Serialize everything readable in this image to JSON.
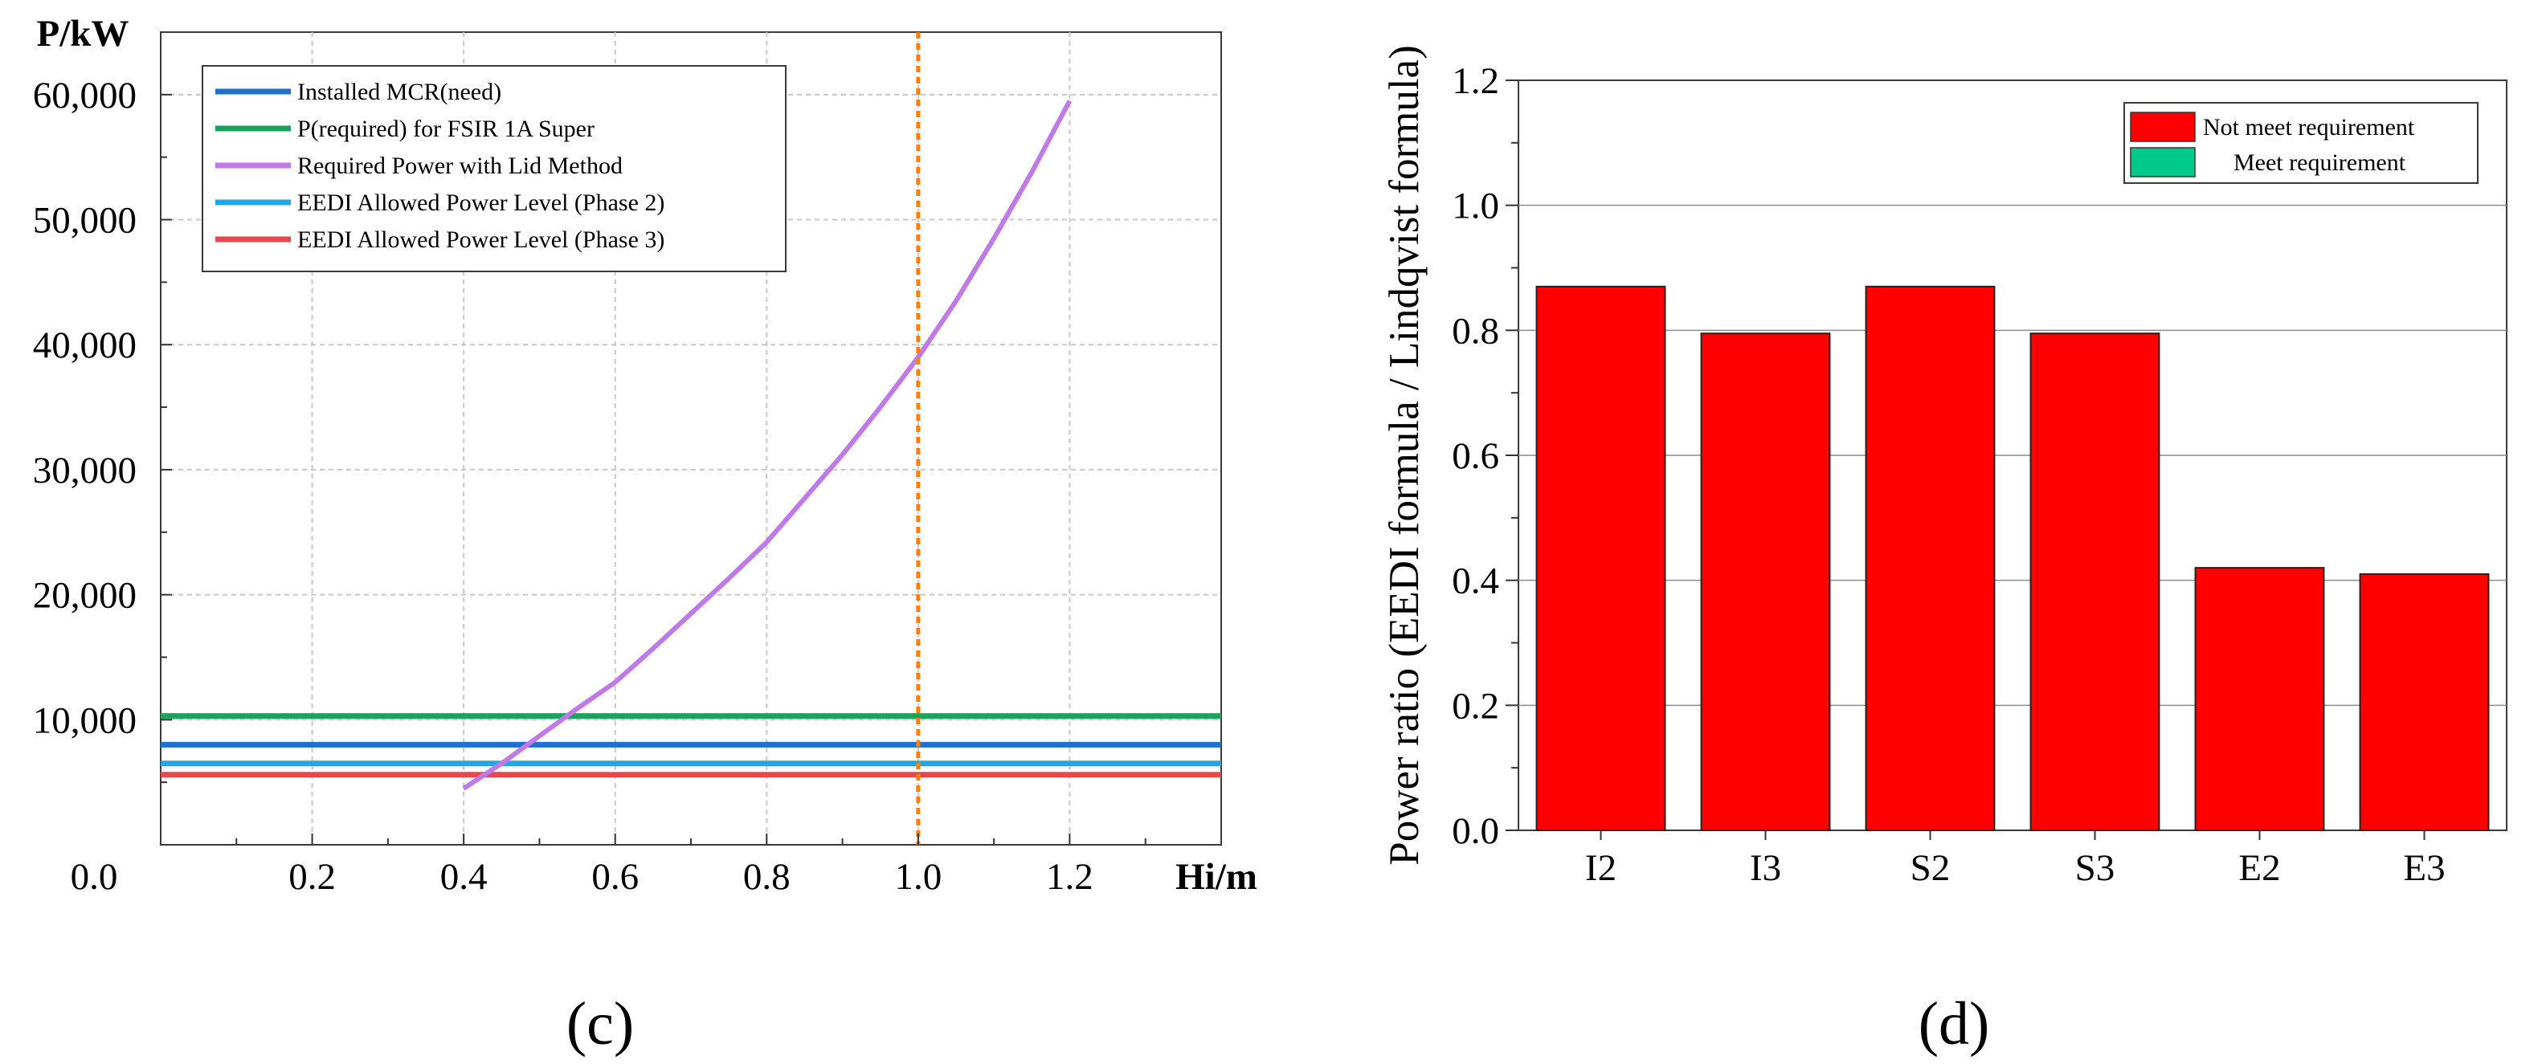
{
  "chart_data": [
    {
      "type": "line",
      "panel_label": "(c)",
      "xlabel": "Hi/m",
      "ylabel": "P/kW",
      "xlim": [
        0,
        1.4
      ],
      "ylim": [
        0,
        65000
      ],
      "x_ticks": [
        0.2,
        0.4,
        0.6,
        0.8,
        1.0,
        1.2
      ],
      "x_tick_labels": [
        "0.2",
        "0.4",
        "0.6",
        "0.8",
        "1.0",
        "1.2"
      ],
      "origin_label": "0.0",
      "y_ticks": [
        10000,
        20000,
        30000,
        40000,
        50000,
        60000
      ],
      "y_tick_labels": [
        "10,000",
        "20,000",
        "30,000",
        "40,000",
        "50,000",
        "60,000"
      ],
      "grid": true,
      "legend_position": "top-left",
      "reference_line": {
        "x": 1.0,
        "style": "dotted",
        "color": "#ff7f0e"
      },
      "series": [
        {
          "name": "Installed MCR(need)",
          "color": "#1f6fd0",
          "x": [
            0,
            1.4
          ],
          "y": [
            8000,
            8000
          ]
        },
        {
          "name": "P(required) for FSIR 1A Super",
          "color": "#1aa35c",
          "x": [
            0,
            1.4
          ],
          "y": [
            10300,
            10300
          ]
        },
        {
          "name": "Required Power with Lid Method",
          "color": "#bf7ae8",
          "x": [
            0.4,
            0.45,
            0.5,
            0.55,
            0.6,
            0.65,
            0.7,
            0.75,
            0.8,
            0.85,
            0.9,
            0.95,
            1.0,
            1.05,
            1.1,
            1.15,
            1.2
          ],
          "y": [
            4500,
            6500,
            8700,
            10900,
            13000,
            15700,
            18500,
            21300,
            24200,
            27700,
            31200,
            35000,
            39000,
            43500,
            48500,
            53800,
            59500
          ]
        },
        {
          "name": "EEDI Allowed Power Level (Phase 2)",
          "color": "#22a6e6",
          "x": [
            0,
            1.4
          ],
          "y": [
            6500,
            6500
          ]
        },
        {
          "name": "EEDI Allowed Power Level (Phase 3)",
          "color": "#e8484d",
          "x": [
            0,
            1.4
          ],
          "y": [
            5600,
            5600
          ]
        }
      ]
    },
    {
      "type": "bar",
      "panel_label": "(d)",
      "categories": [
        "I2",
        "I3",
        "S2",
        "S3",
        "E2",
        "E3"
      ],
      "values": [
        0.87,
        0.795,
        0.87,
        0.795,
        0.42,
        0.41
      ],
      "bar_color": "#ff0000",
      "xlabel": "",
      "ylabel": "Power ratio (EEDI formula / Lindqvist formula)",
      "ylim": [
        0,
        1.2
      ],
      "y_ticks": [
        0,
        0.2,
        0.4,
        0.6,
        0.8,
        1.0,
        1.2
      ],
      "y_tick_labels": [
        "0.0",
        "0.2",
        "0.4",
        "0.6",
        "0.8",
        "1.0",
        "1.2"
      ],
      "grid": true,
      "legend_position": "top-right",
      "legend": [
        {
          "label": "Not meet requirement",
          "color": "#ff0000"
        },
        {
          "label": "Meet requirement",
          "color": "#00c98a"
        }
      ]
    }
  ]
}
